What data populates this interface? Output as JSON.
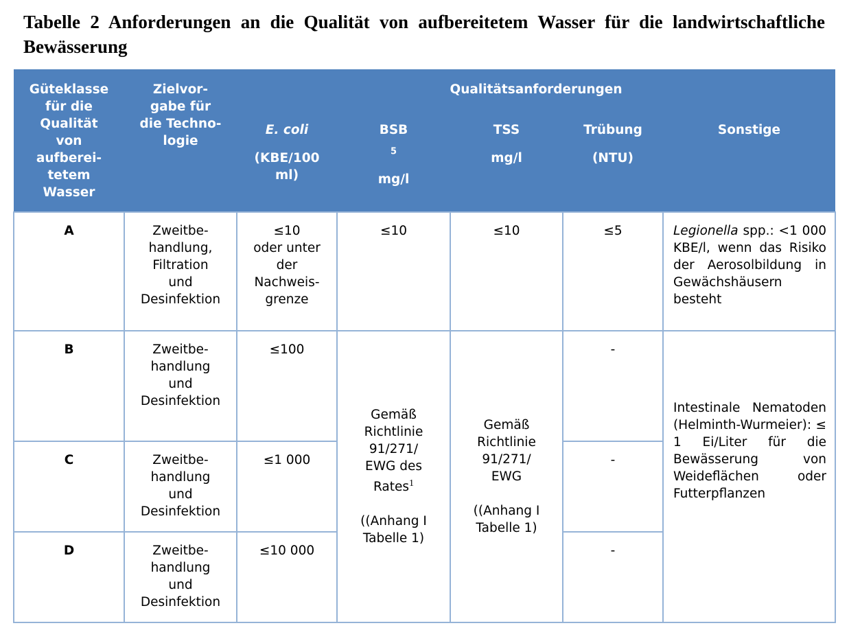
{
  "title": "Tabelle 2 Anforderungen an die Qualität von aufbereitetem Wasser für die landwirtschaftliche Bewässerung",
  "header": {
    "col1": "Güteklasse\nfür die\nQualität\nvon\naufberei-\ntetem\nWasser",
    "col2": "Zielvor-\ngabe für\ndie Techno-\nlogie",
    "group": "Qualitätsanforderungen",
    "ecoli": "E. coli",
    "ecoli_unit": "(KBE/100\nml)",
    "bsb": "BSB",
    "bsb_sub": "5",
    "bsb_unit": "mg/l",
    "tss": "TSS",
    "tss_unit": "mg/l",
    "truebung": "Trübung",
    "truebung_unit": "(NTU)",
    "sonstige": "Sonstige"
  },
  "rows": [
    {
      "class": "A",
      "tech": "Zweitbe-\nhandlung,\nFiltration\nund\nDesinfektion",
      "ecoli": "≤10\noder unter\nder\nNachweis-\ngrenze",
      "bsb": "≤10",
      "tss": "≤10",
      "truebung": "≤5",
      "sonstige_italic": "Legionella",
      "sonstige": " spp.: <1 000 KBE/l, wenn das Risiko der Aerosolbildung in Gewächshäusern besteht"
    },
    {
      "class": "B",
      "tech": "Zweitbe-\nhandlung\nund\nDesinfektion",
      "ecoli": "≤100",
      "truebung": "-"
    },
    {
      "class": "C",
      "tech": "Zweitbe-\nhandlung\nund\nDesinfektion",
      "ecoli": "≤1 000",
      "truebung": "-"
    },
    {
      "class": "D",
      "tech": "Zweitbe-\nhandlung\nund\nDesinfektion",
      "ecoli": "≤10 000",
      "truebung": "-"
    }
  ],
  "merged": {
    "bsb": "Gemäß\nRichtlinie\n91/271/\nEWG des\nRates",
    "bsb_sup": "1",
    "bsb_ref": "\n\n((Anhang I\nTabelle 1)",
    "tss": "Gemäß\nRichtlinie\n91/271/\nEWG\n\n((Anhang I\nTabelle 1)",
    "sonstige": "Intestinale Nematoden (Helminth-Wurmeier): ≤ 1 Ei/Liter für die Bewässerung von Weideflächen oder Futterpflanzen"
  },
  "colors": {
    "header_bg": "#4F81BD",
    "border": "#95B3D7"
  }
}
